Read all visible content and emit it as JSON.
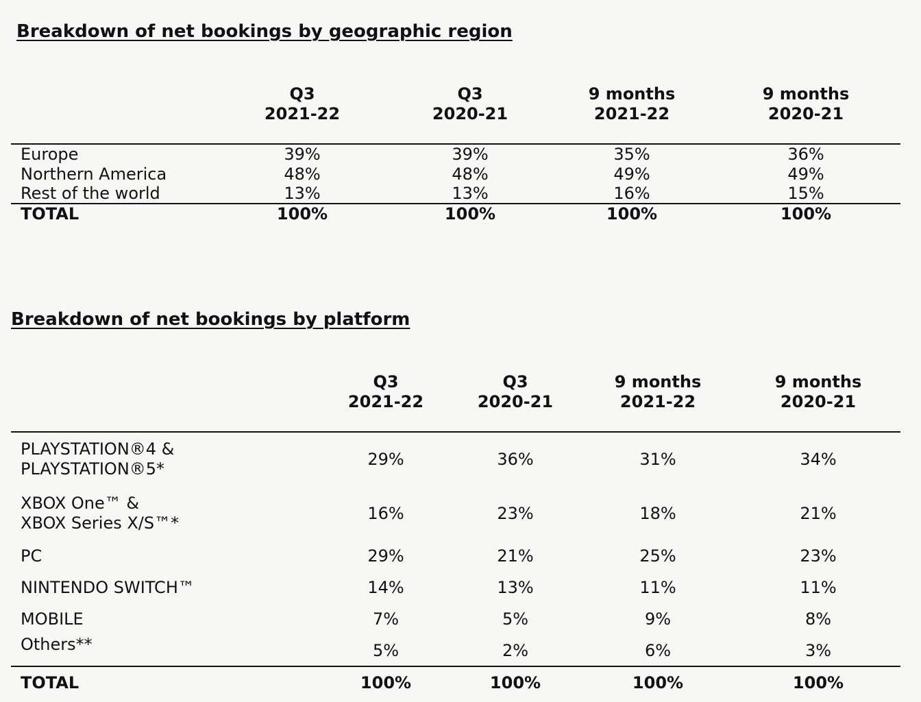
{
  "geo": {
    "title": "Breakdown of net bookings by geographic region",
    "headers": [
      {
        "l1": "Q3",
        "l2": "2021-22"
      },
      {
        "l1": "Q3",
        "l2": "2020-21"
      },
      {
        "l1": "9 months",
        "l2": "2021-22"
      },
      {
        "l1": "9 months",
        "l2": "2020-21"
      }
    ],
    "rows": [
      {
        "label": "Europe",
        "values": [
          "39%",
          "39%",
          "35%",
          "36%"
        ]
      },
      {
        "label": "Northern America",
        "values": [
          "48%",
          "48%",
          "49%",
          "49%"
        ]
      },
      {
        "label": "Rest of the world",
        "values": [
          "13%",
          "13%",
          "16%",
          "15%"
        ]
      }
    ],
    "total": {
      "label": "TOTAL",
      "values": [
        "100%",
        "100%",
        "100%",
        "100%"
      ]
    }
  },
  "platform": {
    "title": "Breakdown of net bookings by platform",
    "headers": [
      {
        "l1": "Q3",
        "l2": "2021-22"
      },
      {
        "l1": "Q3",
        "l2": "2020-21"
      },
      {
        "l1": "9 months",
        "l2": "2021-22"
      },
      {
        "l1": "9 months",
        "l2": "2020-21"
      }
    ],
    "rows": [
      {
        "l1": "PLAYSTATION®4 &",
        "l2": "PLAYSTATION®5*",
        "values": [
          "29%",
          "36%",
          "31%",
          "34%"
        ]
      },
      {
        "l1": "XBOX One™ &",
        "l2": "XBOX Series X/S™*",
        "values": [
          "16%",
          "23%",
          "18%",
          "21%"
        ]
      },
      {
        "l1": "PC",
        "values": [
          "29%",
          "21%",
          "25%",
          "23%"
        ]
      },
      {
        "l1": "NINTENDO SWITCH™",
        "values": [
          "14%",
          "13%",
          "11%",
          "11%"
        ]
      },
      {
        "l1": "MOBILE",
        "values": [
          "7%",
          "5%",
          "9%",
          "8%"
        ]
      },
      {
        "l1": "Others**",
        "values": [
          "5%",
          "2%",
          "6%",
          "3%"
        ]
      }
    ],
    "total": {
      "label": "TOTAL",
      "values": [
        "100%",
        "100%",
        "100%",
        "100%"
      ]
    }
  }
}
